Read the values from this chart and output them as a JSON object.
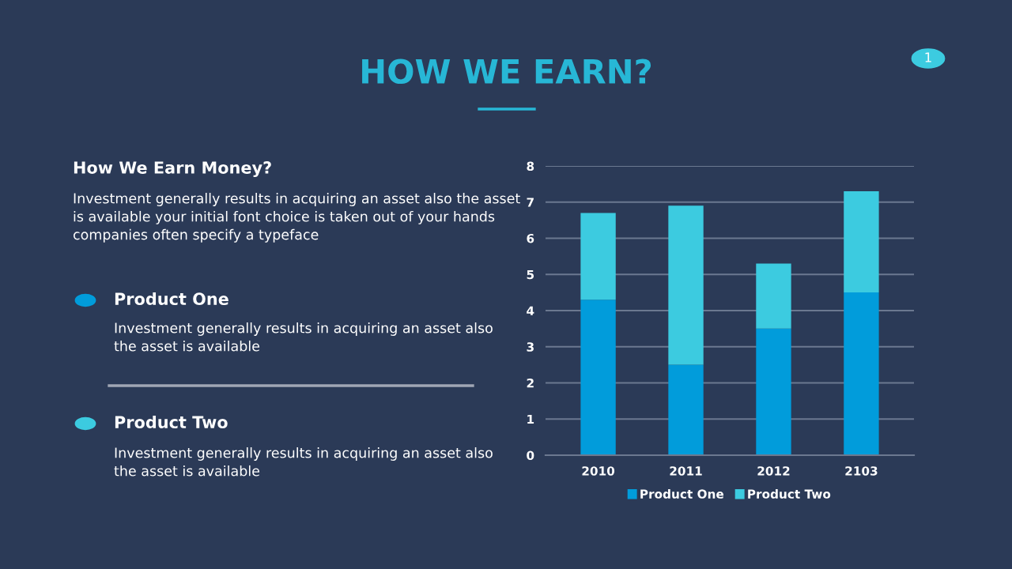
{
  "chart_data": {
    "type": "bar",
    "title": "HOW WE EARN?",
    "stacked": true,
    "categories": [
      "2010",
      "2011",
      "2012",
      "2103"
    ],
    "series": [
      {
        "name": "Product One",
        "color": "#019cdb",
        "values": [
          4.3,
          2.5,
          3.5,
          4.5
        ]
      },
      {
        "name": "Product Two",
        "color": "#3ccbe0",
        "values": [
          2.4,
          4.4,
          1.8,
          2.8
        ]
      }
    ],
    "ylim": [
      0,
      8
    ],
    "yticks": [
      0,
      1,
      2,
      3,
      4,
      5,
      6,
      7,
      8
    ],
    "grid": "y",
    "legend": "bottom",
    "annotations": [
      "How We Earn Money?",
      "Investment generally results in acquiring an asset also the asset\nis available your initial font choice is taken out of your hands\ncompanies often specify a typeface",
      "Product One",
      "Investment generally results in acquiring an asset also\nthe asset is available",
      "Product Two",
      "Investment generally results in acquiring an asset also\nthe asset is available",
      "1"
    ]
  }
}
